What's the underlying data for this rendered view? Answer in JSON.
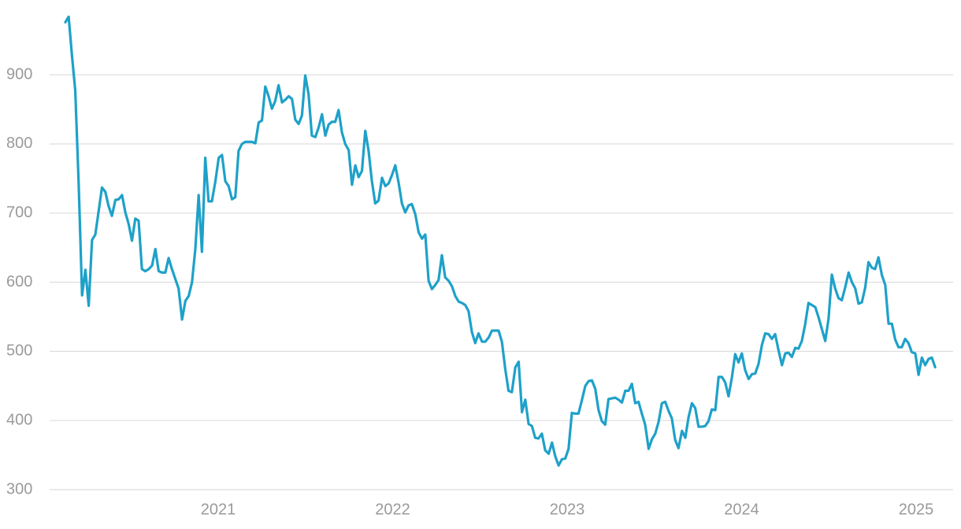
{
  "chart_data": {
    "type": "line",
    "color": "#1ea1c9",
    "grid": true,
    "xlim": [
      2020.034,
      2025.212
    ],
    "xticks": [
      2021,
      2022,
      2023,
      2024,
      2025
    ],
    "ylim": [
      300,
      1000
    ],
    "yticks": [
      300,
      400,
      500,
      600,
      700,
      800,
      900
    ],
    "x": [
      2020.124,
      2020.143,
      2020.162,
      2020.181,
      2020.2,
      2020.22,
      2020.239,
      2020.258,
      2020.277,
      2020.296,
      2020.315,
      2020.334,
      2020.353,
      2020.372,
      2020.391,
      2020.411,
      2020.43,
      2020.449,
      2020.468,
      2020.487,
      2020.506,
      2020.525,
      2020.544,
      2020.563,
      2020.582,
      2020.602,
      2020.621,
      2020.64,
      2020.659,
      2020.678,
      2020.697,
      2020.716,
      2020.735,
      2020.754,
      2020.773,
      2020.793,
      2020.812,
      2020.831,
      2020.85,
      2020.869,
      2020.888,
      2020.907,
      2020.926,
      2020.945,
      2020.964,
      2020.984,
      2021.003,
      2021.022,
      2021.041,
      2021.06,
      2021.079,
      2021.098,
      2021.117,
      2021.136,
      2021.155,
      2021.175,
      2021.194,
      2021.213,
      2021.232,
      2021.251,
      2021.27,
      2021.289,
      2021.308,
      2021.327,
      2021.346,
      2021.366,
      2021.385,
      2021.404,
      2021.423,
      2021.442,
      2021.461,
      2021.48,
      2021.499,
      2021.518,
      2021.537,
      2021.557,
      2021.576,
      2021.595,
      2021.614,
      2021.633,
      2021.652,
      2021.671,
      2021.69,
      2021.709,
      2021.728,
      2021.748,
      2021.767,
      2021.786,
      2021.805,
      2021.824,
      2021.843,
      2021.862,
      2021.881,
      2021.9,
      2021.919,
      2021.939,
      2021.958,
      2021.977,
      2021.996,
      2022.015,
      2022.034,
      2022.053,
      2022.072,
      2022.091,
      2022.11,
      2022.13,
      2022.149,
      2022.168,
      2022.187,
      2022.206,
      2022.225,
      2022.244,
      2022.263,
      2022.282,
      2022.301,
      2022.321,
      2022.34,
      2022.359,
      2022.378,
      2022.397,
      2022.416,
      2022.435,
      2022.454,
      2022.473,
      2022.492,
      2022.512,
      2022.531,
      2022.55,
      2022.569,
      2022.588,
      2022.607,
      2022.626,
      2022.645,
      2022.664,
      2022.683,
      2022.703,
      2022.722,
      2022.741,
      2022.76,
      2022.779,
      2022.798,
      2022.817,
      2022.836,
      2022.855,
      2022.874,
      2022.894,
      2022.913,
      2022.932,
      2022.951,
      2022.97,
      2022.989,
      2023.008,
      2023.027,
      2023.046,
      2023.065,
      2023.085,
      2023.104,
      2023.123,
      2023.142,
      2023.161,
      2023.18,
      2023.199,
      2023.218,
      2023.237,
      2023.256,
      2023.276,
      2023.295,
      2023.314,
      2023.333,
      2023.352,
      2023.371,
      2023.39,
      2023.409,
      2023.428,
      2023.447,
      2023.467,
      2023.486,
      2023.505,
      2023.524,
      2023.543,
      2023.562,
      2023.581,
      2023.6,
      2023.619,
      2023.638,
      2023.658,
      2023.677,
      2023.696,
      2023.715,
      2023.734,
      2023.753,
      2023.772,
      2023.791,
      2023.81,
      2023.829,
      2023.849,
      2023.868,
      2023.887,
      2023.906,
      2023.925,
      2023.944,
      2023.963,
      2023.982,
      2024.001,
      2024.02,
      2024.04,
      2024.059,
      2024.078,
      2024.097,
      2024.116,
      2024.135,
      2024.154,
      2024.173,
      2024.192,
      2024.211,
      2024.231,
      2024.25,
      2024.269,
      2024.288,
      2024.307,
      2024.326,
      2024.345,
      2024.364,
      2024.383,
      2024.402,
      2024.422,
      2024.441,
      2024.46,
      2024.479,
      2024.498,
      2024.517,
      2024.536,
      2024.555,
      2024.574,
      2024.593,
      2024.613,
      2024.632,
      2024.651,
      2024.67,
      2024.689,
      2024.708,
      2024.727,
      2024.746,
      2024.765,
      2024.784,
      2024.804,
      2024.823,
      2024.842,
      2024.861,
      2024.88,
      2024.899,
      2024.918,
      2024.937,
      2024.956,
      2024.975,
      2024.995,
      2025.014,
      2025.033,
      2025.052,
      2025.071,
      2025.09,
      2025.109
    ],
    "values": [
      976,
      984,
      928,
      877,
      746,
      581,
      618,
      566,
      661,
      669,
      703,
      737,
      731,
      710,
      696,
      719,
      720,
      726,
      701,
      684,
      660,
      692,
      689,
      619,
      616,
      619,
      624,
      648,
      616,
      614,
      614,
      635,
      619,
      605,
      591,
      546,
      573,
      580,
      600,
      648,
      726,
      644,
      780,
      717,
      717,
      746,
      780,
      784,
      746,
      739,
      720,
      723,
      790,
      800,
      803,
      803,
      803,
      801,
      831,
      834,
      883,
      869,
      851,
      862,
      885,
      860,
      864,
      869,
      865,
      835,
      829,
      841,
      899,
      872,
      812,
      810,
      824,
      843,
      812,
      828,
      832,
      832,
      849,
      817,
      800,
      791,
      741,
      769,
      752,
      761,
      819,
      790,
      746,
      714,
      718,
      751,
      739,
      743,
      755,
      769,
      744,
      714,
      701,
      711,
      713,
      698,
      672,
      663,
      669,
      602,
      590,
      596,
      603,
      639,
      607,
      602,
      594,
      580,
      572,
      570,
      567,
      558,
      528,
      512,
      526,
      514,
      514,
      520,
      530,
      530,
      530,
      514,
      475,
      443,
      441,
      477,
      485,
      412,
      430,
      395,
      392,
      375,
      374,
      381,
      357,
      352,
      368,
      348,
      335,
      344,
      345,
      359,
      411,
      410,
      410,
      430,
      450,
      457,
      458,
      446,
      415,
      399,
      394,
      431,
      432,
      433,
      430,
      426,
      443,
      443,
      453,
      425,
      427,
      410,
      394,
      359,
      373,
      381,
      398,
      425,
      427,
      414,
      403,
      372,
      360,
      385,
      375,
      405,
      425,
      418,
      391,
      391,
      392,
      399,
      416,
      415,
      463,
      463,
      455,
      435,
      462,
      496,
      484,
      497,
      473,
      460,
      467,
      468,
      482,
      509,
      526,
      525,
      518,
      525,
      502,
      480,
      497,
      498,
      492,
      505,
      504,
      515,
      539,
      570,
      567,
      564,
      549,
      532,
      515,
      547,
      611,
      591,
      577,
      574,
      592,
      614,
      600,
      591,
      569,
      571,
      592,
      629,
      621,
      619,
      636,
      610,
      596,
      540,
      540,
      517,
      506,
      506,
      518,
      512,
      499,
      497,
      466,
      491,
      480,
      489,
      491,
      477
    ]
  }
}
